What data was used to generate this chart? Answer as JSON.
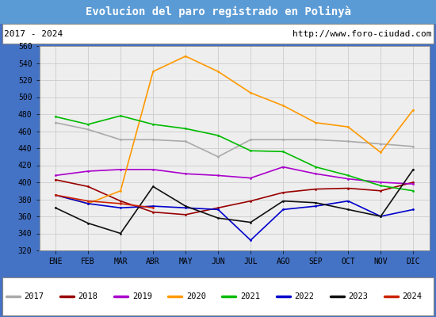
{
  "title": "Evolucion del paro registrado en Polinyà",
  "subtitle_left": "2017 - 2024",
  "subtitle_right": "http://www.foro-ciudad.com",
  "title_bg_color": "#5b9bd5",
  "title_fg_color": "white",
  "months": [
    "ENE",
    "FEB",
    "MAR",
    "ABR",
    "MAY",
    "JUN",
    "JUL",
    "AGO",
    "SEP",
    "OCT",
    "NOV",
    "DIC"
  ],
  "ylim": [
    320,
    560
  ],
  "yticks": [
    320,
    340,
    360,
    380,
    400,
    420,
    440,
    460,
    480,
    500,
    520,
    540,
    560
  ],
  "series": {
    "2017": {
      "color": "#aaaaaa",
      "values": [
        470,
        462,
        450,
        450,
        448,
        430,
        450,
        450,
        450,
        448,
        445,
        442
      ]
    },
    "2018": {
      "color": "#990000",
      "values": [
        403,
        395,
        378,
        365,
        362,
        370,
        378,
        388,
        392,
        393,
        390,
        400
      ]
    },
    "2019": {
      "color": "#aa00cc",
      "values": [
        408,
        413,
        415,
        415,
        410,
        408,
        405,
        418,
        410,
        404,
        400,
        398
      ]
    },
    "2020": {
      "color": "#ff9900",
      "values": [
        385,
        375,
        390,
        530,
        548,
        530,
        505,
        490,
        470,
        465,
        435,
        485
      ]
    },
    "2021": {
      "color": "#00bb00",
      "values": [
        477,
        468,
        478,
        468,
        463,
        455,
        437,
        436,
        418,
        408,
        396,
        390
      ]
    },
    "2022": {
      "color": "#0000cc",
      "values": [
        385,
        375,
        370,
        372,
        370,
        368,
        332,
        368,
        372,
        378,
        360,
        368
      ]
    },
    "2023": {
      "color": "#111111",
      "values": [
        370,
        352,
        340,
        395,
        372,
        358,
        353,
        378,
        376,
        368,
        360,
        415
      ]
    },
    "2024": {
      "color": "#cc2200",
      "values": [
        385,
        378,
        375,
        370,
        null,
        null,
        null,
        null,
        null,
        null,
        null,
        null
      ]
    }
  }
}
